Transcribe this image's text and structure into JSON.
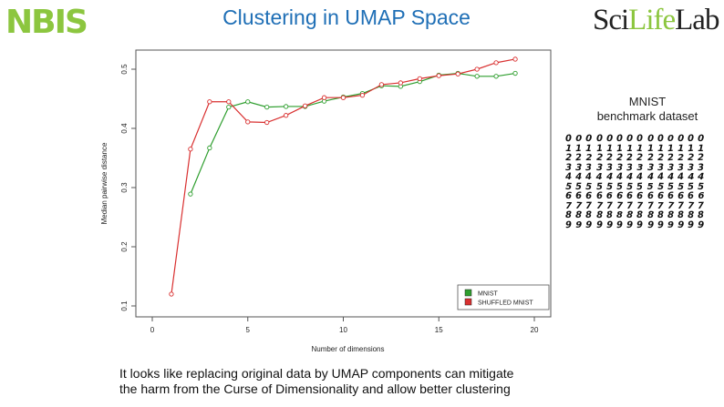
{
  "header": {
    "title": "Clustering in UMAP Space",
    "logo_left": "NBIS",
    "logo_right_a": "Sci",
    "logo_right_b": "Life",
    "logo_right_c": "Lab",
    "logo_right_accent": "#8cc63f",
    "title_color": "#1f6fb6"
  },
  "side_panel": {
    "line1": "MNIST",
    "line2": "benchmark dataset",
    "digit_rows": [
      [
        "0",
        "0",
        "0",
        "0",
        "0",
        "0",
        "0",
        "0",
        "0",
        "0",
        "0",
        "0",
        "0",
        "0"
      ],
      [
        "1",
        "1",
        "1",
        "1",
        "1",
        "1",
        "1",
        "1",
        "1",
        "1",
        "1",
        "1",
        "1",
        "1"
      ],
      [
        "2",
        "2",
        "2",
        "2",
        "2",
        "2",
        "2",
        "2",
        "2",
        "2",
        "2",
        "2",
        "2",
        "2"
      ],
      [
        "3",
        "3",
        "3",
        "3",
        "3",
        "3",
        "3",
        "3",
        "3",
        "3",
        "3",
        "3",
        "3",
        "3"
      ],
      [
        "4",
        "4",
        "4",
        "4",
        "4",
        "4",
        "4",
        "4",
        "4",
        "4",
        "4",
        "4",
        "4",
        "4"
      ],
      [
        "5",
        "5",
        "5",
        "5",
        "5",
        "5",
        "5",
        "5",
        "5",
        "5",
        "5",
        "5",
        "5",
        "5"
      ],
      [
        "6",
        "6",
        "6",
        "6",
        "6",
        "6",
        "6",
        "6",
        "6",
        "6",
        "6",
        "6",
        "6",
        "6"
      ],
      [
        "7",
        "7",
        "7",
        "7",
        "7",
        "7",
        "7",
        "7",
        "7",
        "7",
        "7",
        "7",
        "7",
        "7"
      ],
      [
        "8",
        "8",
        "8",
        "8",
        "8",
        "8",
        "8",
        "8",
        "8",
        "8",
        "8",
        "8",
        "8",
        "8"
      ],
      [
        "9",
        "9",
        "9",
        "9",
        "9",
        "9",
        "9",
        "9",
        "9",
        "9",
        "9",
        "9",
        "9",
        "9"
      ]
    ]
  },
  "caption": {
    "line1": "It looks like replacing original data by UMAP components can mitigate",
    "line2": "the harm from the Curse of Dimensionality and allow better clustering"
  },
  "chart_data": {
    "type": "line",
    "title": "",
    "xlabel": "Number of dimensions",
    "ylabel": "Median pairwise distance",
    "xlim": [
      0,
      20
    ],
    "ylim": [
      0.1,
      0.52
    ],
    "xticks": [
      0,
      5,
      10,
      15,
      20
    ],
    "yticks": [
      0.1,
      0.2,
      0.3,
      0.4,
      0.5
    ],
    "legend_position": "bottom-right",
    "grid": false,
    "series": [
      {
        "name": "MNIST",
        "color": "#2e9e2e",
        "x": [
          2,
          3,
          4,
          5,
          6,
          7,
          8,
          9,
          10,
          11,
          12,
          13,
          14,
          15,
          16,
          17,
          18,
          19
        ],
        "y": [
          0.289,
          0.367,
          0.436,
          0.445,
          0.436,
          0.437,
          0.437,
          0.446,
          0.453,
          0.459,
          0.472,
          0.471,
          0.479,
          0.49,
          0.493,
          0.488,
          0.488,
          0.493
        ]
      },
      {
        "name": "SHUFFLED MNIST",
        "color": "#d93030",
        "x": [
          1,
          2,
          3,
          4,
          5,
          6,
          7,
          8,
          9,
          10,
          11,
          12,
          13,
          14,
          15,
          16,
          17,
          18,
          19
        ],
        "y": [
          0.12,
          0.365,
          0.445,
          0.445,
          0.411,
          0.41,
          0.422,
          0.438,
          0.452,
          0.452,
          0.456,
          0.474,
          0.477,
          0.484,
          0.489,
          0.492,
          0.5,
          0.511,
          0.517
        ]
      }
    ]
  }
}
